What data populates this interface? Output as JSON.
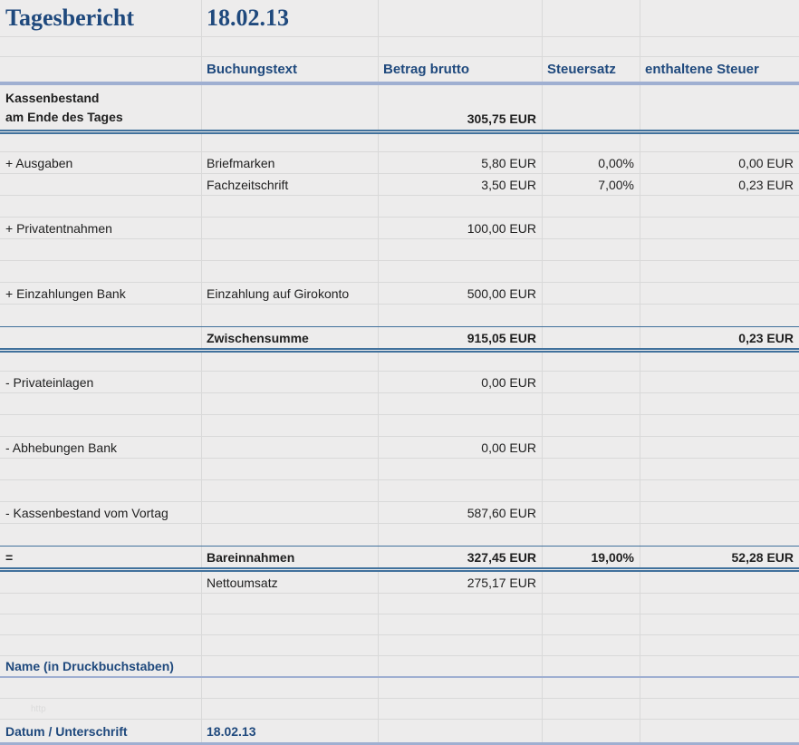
{
  "title": {
    "label": "Tagesbericht",
    "date": "18.02.13"
  },
  "header": {
    "buchungstext": "Buchungstext",
    "betrag_brutto": "Betrag brutto",
    "steuersatz": "Steuersatz",
    "enthaltene_steuer": "enthaltene Steuer"
  },
  "rows": {
    "kassenbestand": {
      "label_line1": "Kassenbestand",
      "label_line2": "am Ende des Tages",
      "betrag": "305,75 EUR"
    },
    "ausgaben": {
      "label": "+ Ausgaben",
      "items": [
        {
          "text": "Briefmarken",
          "betrag": "5,80 EUR",
          "steuersatz": "0,00%",
          "steuer": "0,00 EUR"
        },
        {
          "text": "Fachzeitschrift",
          "betrag": "3,50 EUR",
          "steuersatz": "7,00%",
          "steuer": "0,23 EUR"
        }
      ]
    },
    "privatentnahmen": {
      "label": "+ Privatentnahmen",
      "betrag": "100,00 EUR"
    },
    "einzahlungen_bank": {
      "label": "+ Einzahlungen Bank",
      "text": "Einzahlung auf Girokonto",
      "betrag": "500,00 EUR"
    },
    "zwischensumme": {
      "text": "Zwischensumme",
      "betrag": "915,05 EUR",
      "steuer": "0,23 EUR"
    },
    "privateinlagen": {
      "label": "- Privateinlagen",
      "betrag": "0,00 EUR"
    },
    "abhebungen_bank": {
      "label": "- Abhebungen Bank",
      "betrag": "0,00 EUR"
    },
    "kassenbestand_vortag": {
      "label": "- Kassenbestand vom Vortag",
      "betrag": "587,60 EUR"
    },
    "bareinnahmen": {
      "label": "=",
      "text": "Bareinnahmen",
      "betrag": "327,45 EUR",
      "steuersatz": "19,00%",
      "steuer": "52,28 EUR"
    },
    "nettoumsatz": {
      "text": "Nettoumsatz",
      "betrag": "275,17 EUR"
    }
  },
  "footer": {
    "name_label": "Name (in Druckbuchstaben)",
    "datum_label": "Datum / Unterschrift",
    "datum_value": "18.02.13",
    "watermark": "http"
  },
  "colors": {
    "accent_text": "#1F497D",
    "rule_light_blue": "#9FAFD1",
    "rule_dark_blue": "#41719C",
    "background": "#EDECEC",
    "gridline": "#D9D9D9"
  }
}
